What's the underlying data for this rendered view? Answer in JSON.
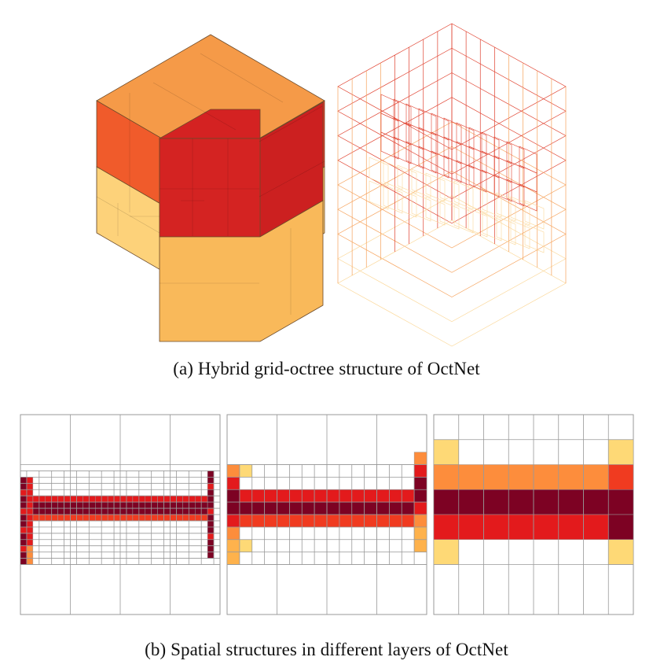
{
  "figure": {
    "caption_a": "(a)  Hybrid grid-octree structure of OctNet",
    "caption_b": "(b)  Spatial structures in different layers of OctNet"
  },
  "colors": {
    "cube_top_back": "#f59a48",
    "cube_left_upper": "#f05b2b",
    "cube_right_upper": "#ea3324",
    "cube_front_top": "#d42222",
    "cube_front_left": "#d42322",
    "cube_front_right": "#cc2020",
    "cube_lower_left": "#fdd27a",
    "cube_lower_front": "#f9b95a",
    "cube_lower_right": "#fcc96c",
    "dark_red": "#7d0223",
    "red": "#e31a1c",
    "red_orange": "#f03b20",
    "orange": "#fd8d3c",
    "light_orange": "#feb24c",
    "pale_yellow": "#fed976",
    "grid_line": "#999999",
    "wire_red": "#e0402e",
    "wire_orange": "#f6a25b",
    "wire_yellow": "#fbd89a"
  }
}
